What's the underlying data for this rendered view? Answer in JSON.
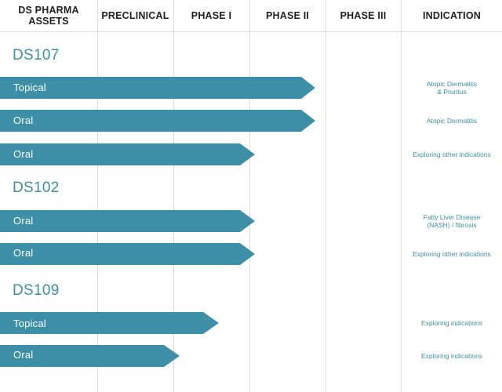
{
  "colors": {
    "bar": "#3d8fa8",
    "asset_title": "#3d8fa8",
    "indication_text": "#3d8fa8",
    "header_text": "#1f1f1f",
    "grid": "#dcdcdc"
  },
  "headers": {
    "assets": "DS PHARMA\nASSETS",
    "preclinical": "PRECLINICAL",
    "phase1": "PHASE I",
    "phase2": "PHASE II",
    "phase3": "PHASE III",
    "indication": "INDICATION"
  },
  "assets": [
    {
      "name": "DS107",
      "programs": [
        {
          "route": "Topical",
          "stage_reached": "Phase II",
          "indication": "Atopic Dermatitis\n& Pruritus"
        },
        {
          "route": "Oral",
          "stage_reached": "Phase II",
          "indication": "Atopic Dermatitis"
        },
        {
          "route": "Oral",
          "stage_reached": "Phase I",
          "indication": "Exploring other indications"
        }
      ]
    },
    {
      "name": "DS102",
      "programs": [
        {
          "route": "Oral",
          "stage_reached": "Phase I",
          "indication": "Fatty Liver Disease\n(NASH) / fibrosis"
        },
        {
          "route": "Oral",
          "stage_reached": "Phase I",
          "indication": "Exploring other indications"
        }
      ]
    },
    {
      "name": "DS109",
      "programs": [
        {
          "route": "Topical",
          "stage_reached": "Phase I",
          "indication": "Exploring indications"
        },
        {
          "route": "Oral",
          "stage_reached": "Preclinical",
          "indication": "Exploring indications"
        }
      ]
    }
  ]
}
